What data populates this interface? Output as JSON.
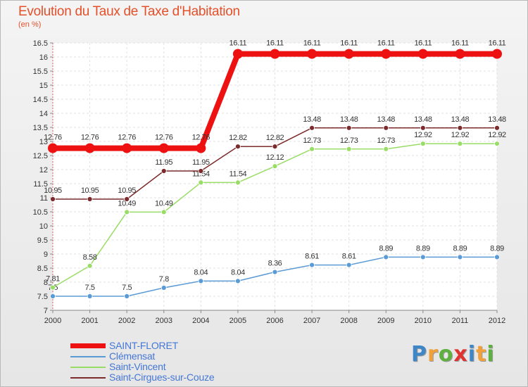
{
  "chart_data": {
    "type": "line",
    "title": "Evolution du Taux de Taxe d'Habitation",
    "subtitle": "(en %)",
    "xlabel": "",
    "ylabel": "(en %)",
    "x": [
      2000,
      2001,
      2002,
      2003,
      2004,
      2005,
      2006,
      2007,
      2008,
      2009,
      2010,
      2011,
      2012
    ],
    "ylim": [
      7,
      16.5
    ],
    "yticks": [
      7,
      7.5,
      8,
      8.5,
      9,
      9.5,
      10,
      10.5,
      11,
      11.5,
      12,
      12.5,
      13,
      13.5,
      14,
      14.5,
      15,
      15.5,
      16,
      16.5
    ],
    "grid": true,
    "legend_position": "bottom-left",
    "series": [
      {
        "name": "Clémensat",
        "color": "#5b9bd5",
        "values": [
          7.5,
          7.5,
          7.5,
          7.8,
          8.04,
          8.04,
          8.36,
          8.61,
          8.61,
          8.89,
          8.89,
          8.89,
          8.89
        ]
      },
      {
        "name": "Saint-Vincent",
        "color": "#99dd66",
        "values": [
          7.81,
          8.58,
          10.49,
          10.49,
          11.54,
          11.54,
          12.12,
          12.73,
          12.73,
          12.73,
          12.92,
          12.92,
          12.92
        ]
      },
      {
        "name": "Saint-Cirgues-sur-Couze",
        "color": "#7b2b2b",
        "values": [
          10.95,
          10.95,
          10.95,
          11.95,
          11.95,
          12.82,
          12.82,
          13.48,
          13.48,
          13.48,
          13.48,
          13.48,
          13.48
        ]
      },
      {
        "name": "SAINT-FLORET",
        "color": "#ee1111",
        "values": [
          12.76,
          12.76,
          12.76,
          12.76,
          12.76,
          16.11,
          16.11,
          16.11,
          16.11,
          16.11,
          16.11,
          16.11,
          16.11
        ]
      }
    ],
    "legend": [
      {
        "name": "SAINT-FLORET",
        "color": "#ee1111",
        "thick": true
      },
      {
        "name": "Clémensat",
        "color": "#5b9bd5",
        "thick": false
      },
      {
        "name": "Saint-Vincent",
        "color": "#99dd66",
        "thick": false
      },
      {
        "name": "Saint-Cirgues-sur-Couze",
        "color": "#7b2b2b",
        "thick": false
      }
    ]
  },
  "brand": {
    "letters": [
      "P",
      "r",
      "o",
      "x",
      "i",
      "t",
      "i"
    ],
    "colors": [
      "#3f86c6",
      "#f2a13a",
      "#5eb13f",
      "#e0332f",
      "#3f86c6",
      "#f2a13a",
      "#5eb13f"
    ]
  }
}
